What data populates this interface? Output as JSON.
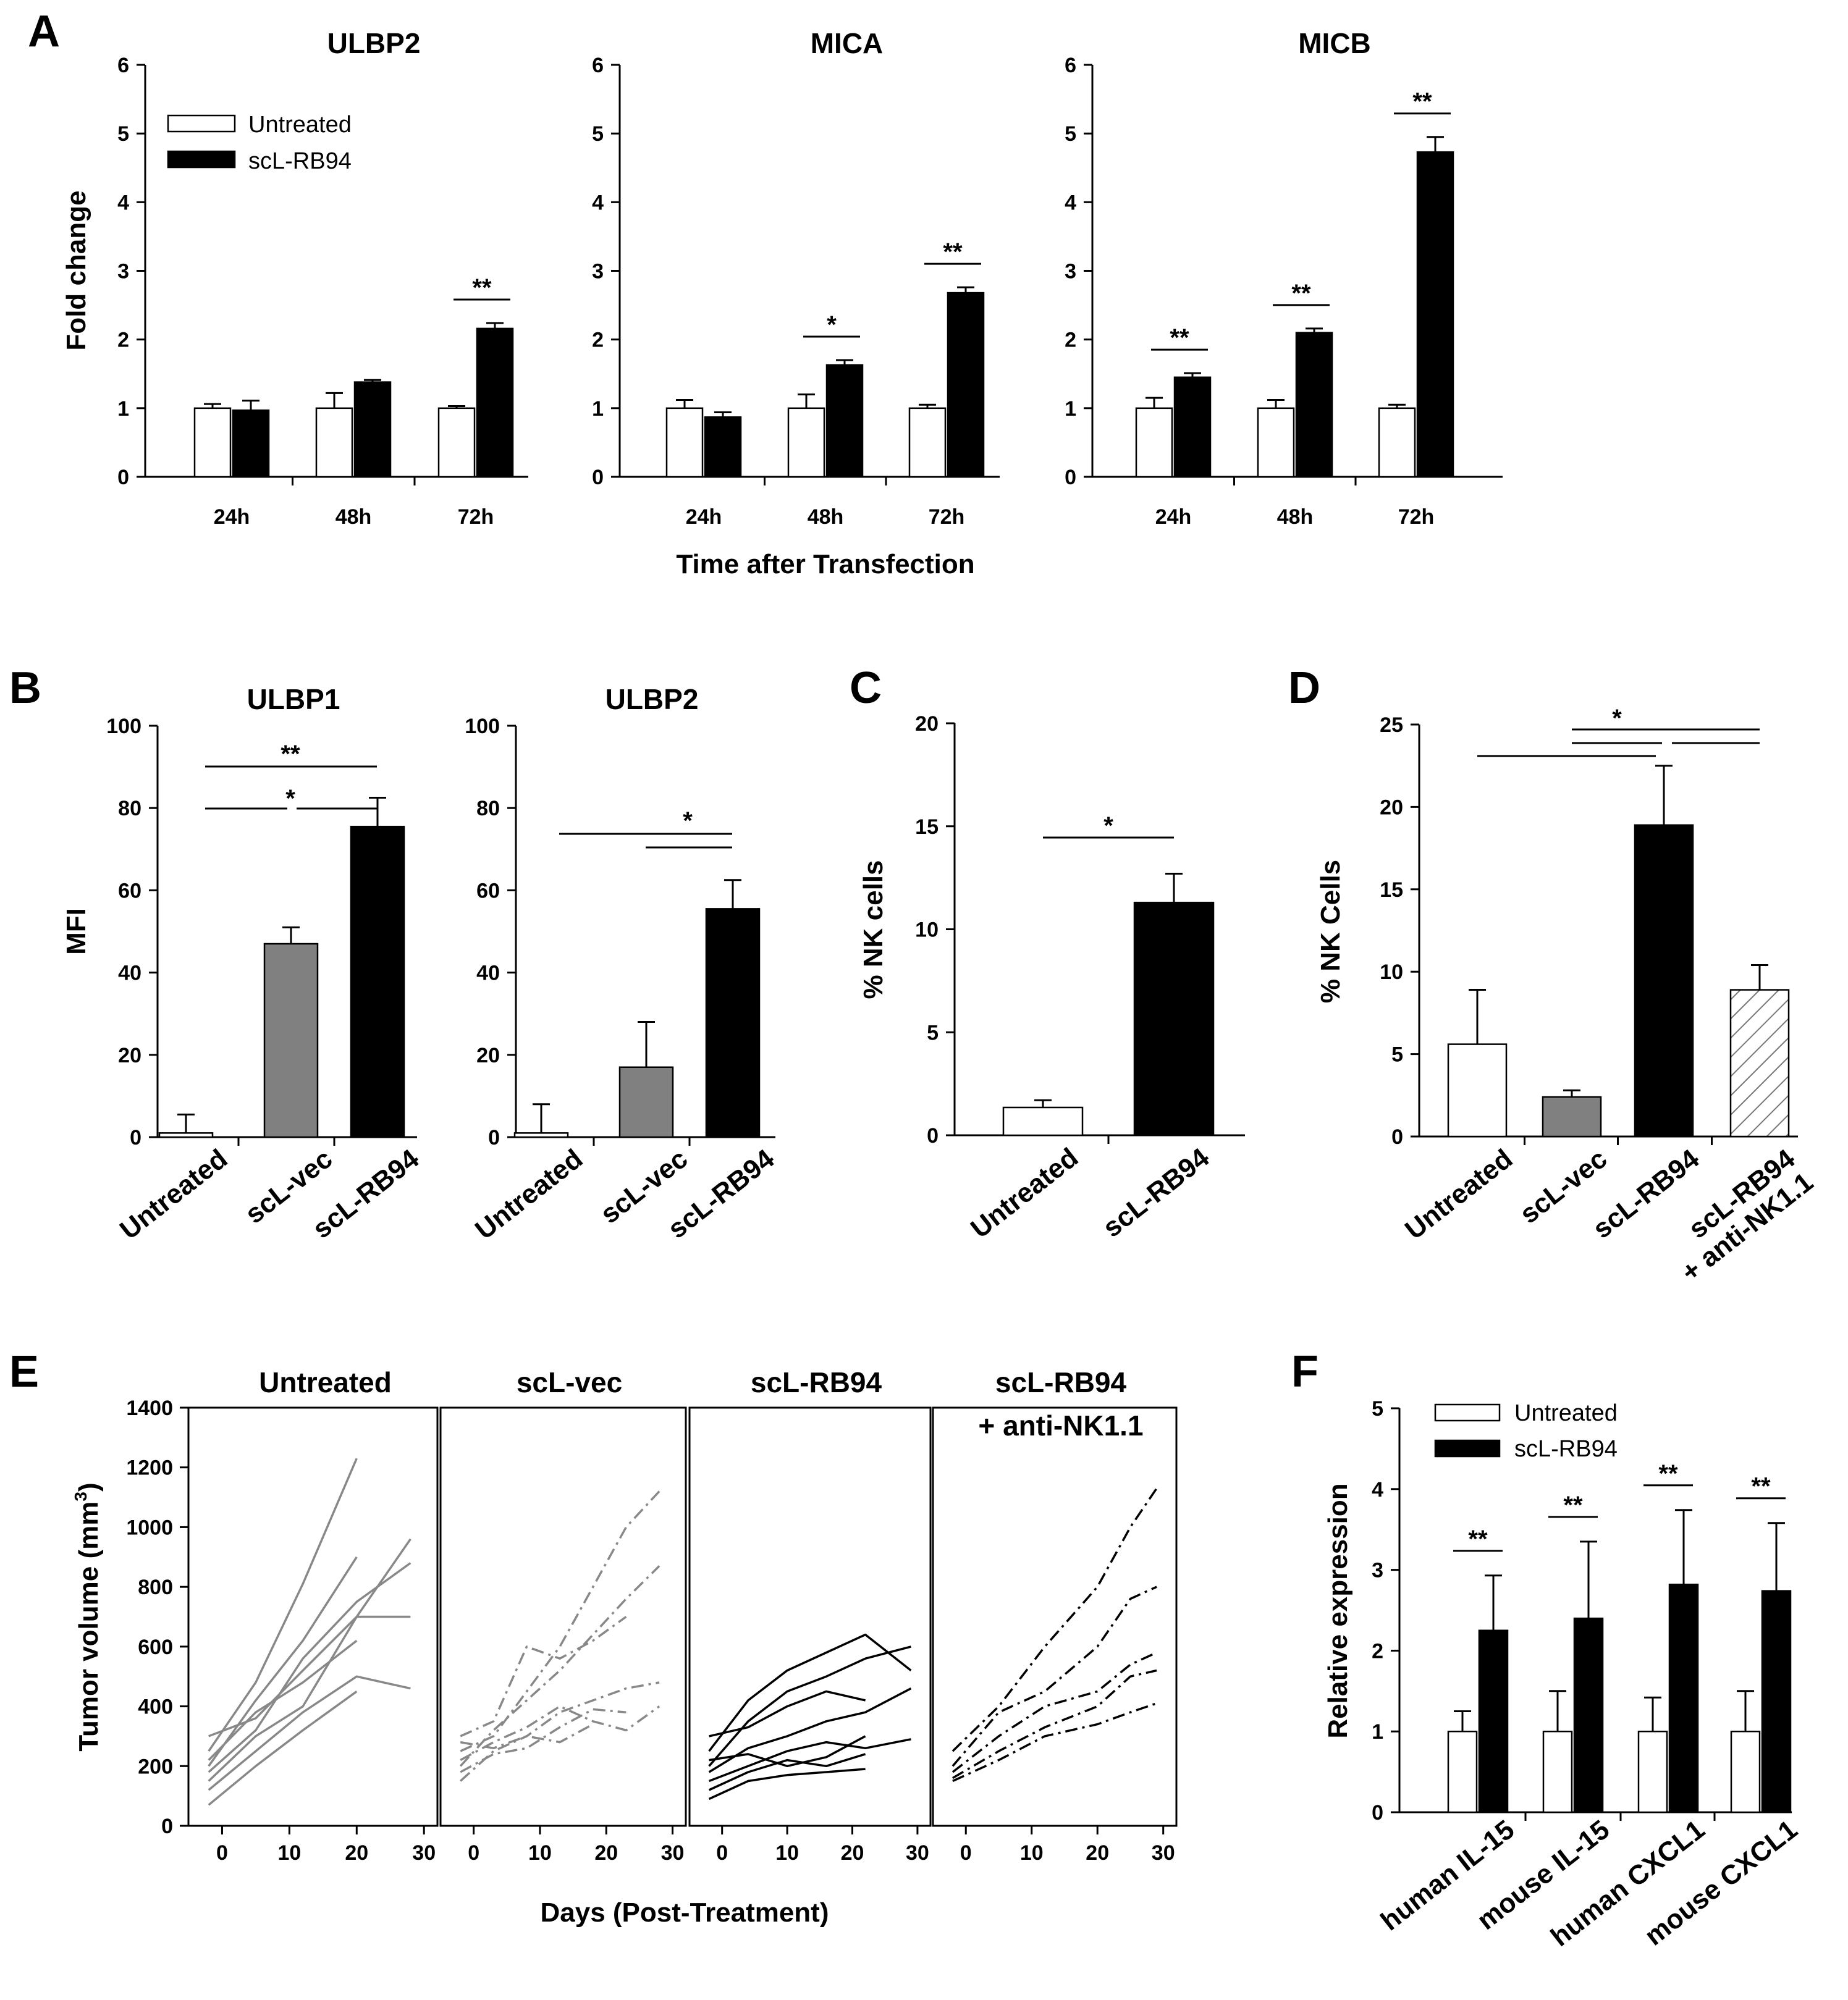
{
  "chart_data": [
    {
      "id": "A1",
      "panel_label": "A",
      "type": "bar",
      "title": "ULBP2",
      "categories": [
        "24h",
        "48h",
        "72h"
      ],
      "series": [
        {
          "name": "Untreated",
          "values": [
            1.0,
            1.0,
            1.0
          ],
          "errors": [
            0.06,
            0.22,
            0.03
          ]
        },
        {
          "name": "scL-RB94",
          "values": [
            0.97,
            1.38,
            2.16
          ],
          "errors": [
            0.14,
            0.03,
            0.08
          ]
        }
      ],
      "ylabel": "Fold change",
      "ylim": [
        0,
        6
      ],
      "yticks": [
        "0",
        "1",
        "2",
        "3",
        "4",
        "5",
        "6"
      ],
      "legend": [
        "Untreated",
        "scL-RB94"
      ],
      "significance": [
        {
          "label": "**",
          "category": "72h"
        }
      ]
    },
    {
      "id": "A2",
      "type": "bar",
      "title": "MICA",
      "categories": [
        "24h",
        "48h",
        "72h"
      ],
      "series": [
        {
          "name": "Untreated",
          "values": [
            1.0,
            1.0,
            1.0
          ],
          "errors": [
            0.12,
            0.2,
            0.05
          ]
        },
        {
          "name": "scL-RB94",
          "values": [
            0.87,
            1.63,
            2.68
          ],
          "errors": [
            0.07,
            0.07,
            0.08
          ]
        }
      ],
      "ylim": [
        0,
        6
      ],
      "yticks": [
        "0",
        "1",
        "2",
        "3",
        "4",
        "5",
        "6"
      ],
      "xlabel": "Time after Transfection",
      "significance": [
        {
          "label": "*",
          "category": "48h"
        },
        {
          "label": "**",
          "category": "72h"
        }
      ]
    },
    {
      "id": "A3",
      "type": "bar",
      "title": "MICB",
      "categories": [
        "24h",
        "48h",
        "72h"
      ],
      "series": [
        {
          "name": "Untreated",
          "values": [
            1.0,
            1.0,
            1.0
          ],
          "errors": [
            0.15,
            0.12,
            0.05
          ]
        },
        {
          "name": "scL-RB94",
          "values": [
            1.45,
            2.1,
            4.73
          ],
          "errors": [
            0.06,
            0.06,
            0.22
          ]
        }
      ],
      "ylim": [
        0,
        6
      ],
      "yticks": [
        "0",
        "1",
        "2",
        "3",
        "4",
        "5",
        "6"
      ],
      "significance": [
        {
          "label": "**",
          "category": "24h"
        },
        {
          "label": "**",
          "category": "48h"
        },
        {
          "label": "**",
          "category": "72h"
        }
      ]
    },
    {
      "id": "B1",
      "panel_label": "B",
      "type": "bar",
      "title": "ULBP1",
      "categories": [
        "Untreated",
        "scL-vec",
        "scL-RB94"
      ],
      "values": [
        1,
        47,
        75.5
      ],
      "errors": [
        4.5,
        4,
        7
      ],
      "colors": [
        "#ffffff",
        "#808080",
        "#000000"
      ],
      "ylabel": "MFI",
      "ylim": [
        0,
        100
      ],
      "yticks": [
        "0",
        "20",
        "40",
        "60",
        "80",
        "100"
      ],
      "significance": [
        {
          "label": "**",
          "from": "Untreated",
          "to": "scL-RB94"
        },
        {
          "label": "*",
          "from": "Untreated",
          "to": "scL-RB94"
        }
      ]
    },
    {
      "id": "B2",
      "type": "bar",
      "title": "ULBP2",
      "categories": [
        "Untreated",
        "scL-vec",
        "scL-RB94"
      ],
      "values": [
        1,
        17,
        55.5
      ],
      "errors": [
        7,
        11,
        7
      ],
      "colors": [
        "#ffffff",
        "#808080",
        "#000000"
      ],
      "ylim": [
        0,
        100
      ],
      "yticks": [
        "0",
        "20",
        "40",
        "60",
        "80",
        "100"
      ],
      "significance": [
        {
          "label": "*",
          "from": "Untreated",
          "to": "scL-RB94"
        }
      ]
    },
    {
      "id": "C",
      "panel_label": "C",
      "type": "bar",
      "categories": [
        "Untreated",
        "scL-RB94"
      ],
      "values": [
        1.35,
        11.3
      ],
      "errors": [
        0.35,
        1.4
      ],
      "colors": [
        "#ffffff",
        "#000000"
      ],
      "ylabel": "% NK cells",
      "ylim": [
        0,
        20
      ],
      "yticks": [
        "0",
        "5",
        "10",
        "15",
        "20"
      ],
      "significance": [
        {
          "label": "*",
          "from": "Untreated",
          "to": "scL-RB94"
        }
      ]
    },
    {
      "id": "D",
      "panel_label": "D",
      "type": "bar",
      "categories": [
        "Untreated",
        "scL-vec",
        "scL-RB94",
        "scL-RB94 + anti-NK1.1"
      ],
      "category_lines": [
        [
          "Untreated"
        ],
        [
          "scL-vec"
        ],
        [
          "scL-RB94"
        ],
        [
          "scL-RB94",
          "+ anti-NK1.1"
        ]
      ],
      "values": [
        5.6,
        2.4,
        18.9,
        8.9
      ],
      "errors": [
        3.3,
        0.4,
        3.6,
        1.5
      ],
      "colors": [
        "#ffffff",
        "#808080",
        "#000000",
        "hatch"
      ],
      "ylabel": "% NK Cells",
      "ylim": [
        0,
        25
      ],
      "yticks": [
        "0",
        "5",
        "10",
        "15",
        "20",
        "25"
      ],
      "significance": [
        {
          "label": "*",
          "comparisons": [
            [
              "Untreated",
              "scL-RB94"
            ],
            [
              "scL-vec",
              "scL-RB94"
            ],
            [
              "scL-RB94",
              "scL-RB94 + anti-NK1.1"
            ]
          ]
        }
      ]
    },
    {
      "id": "E",
      "panel_label": "E",
      "type": "line",
      "ylabel": "Tumor volume (mm",
      "ylabel_sup": "3",
      "ylabel_tail": ")",
      "xlabel": "Days (Post-Treatment)",
      "ylim": [
        0,
        1400
      ],
      "yticks": [
        "0",
        "200",
        "400",
        "600",
        "800",
        "1000",
        "1200",
        "1400"
      ],
      "xlim": [
        -5,
        32
      ],
      "xticks": [
        "0",
        "10",
        "20",
        "30"
      ],
      "subplots": [
        {
          "title": [
            "Untreated"
          ],
          "color": "#888888",
          "style": "solid",
          "series": [
            {
              "x": [
                -2,
                5,
                12,
                20
              ],
              "y": [
                250,
                480,
                810,
                1230
              ]
            },
            {
              "x": [
                -2,
                5,
                12,
                20
              ],
              "y": [
                200,
                420,
                620,
                900
              ]
            },
            {
              "x": [
                -2,
                5,
                12,
                20,
                28
              ],
              "y": [
                300,
                360,
                520,
                700,
                960
              ]
            },
            {
              "x": [
                -2,
                5,
                12,
                20,
                28
              ],
              "y": [
                180,
                320,
                560,
                750,
                880
              ]
            },
            {
              "x": [
                -2,
                5,
                12,
                20,
                28
              ],
              "y": [
                150,
                300,
                400,
                700,
                700
              ]
            },
            {
              "x": [
                -2,
                5,
                12,
                20
              ],
              "y": [
                220,
                380,
                480,
                620
              ]
            },
            {
              "x": [
                -2,
                5,
                12,
                20,
                28
              ],
              "y": [
                120,
                250,
                380,
                500,
                460
              ]
            },
            {
              "x": [
                -2,
                5,
                12,
                20
              ],
              "y": [
                70,
                200,
                320,
                450
              ]
            }
          ]
        },
        {
          "title": [
            "scL-vec"
          ],
          "color": "#888888",
          "style": "dashdot",
          "series": [
            {
              "x": [
                -2,
                3,
                8,
                13,
                18,
                23,
                28
              ],
              "y": [
                250,
                300,
                450,
                600,
                800,
                1000,
                1120
              ]
            },
            {
              "x": [
                -2,
                3,
                8,
                13,
                18,
                23,
                28
              ],
              "y": [
                200,
                320,
                420,
                520,
                640,
                760,
                870
              ]
            },
            {
              "x": [
                -2,
                3,
                8,
                13,
                18,
                23
              ],
              "y": [
                300,
                350,
                600,
                560,
                620,
                700
              ]
            },
            {
              "x": [
                -2,
                3,
                8,
                13,
                18,
                23,
                28
              ],
              "y": [
                150,
                250,
                300,
                380,
                420,
                460,
                480
              ]
            },
            {
              "x": [
                -2,
                3,
                8,
                13,
                18,
                23,
                28
              ],
              "y": [
                220,
                280,
                330,
                400,
                350,
                320,
                400
              ]
            },
            {
              "x": [
                -2,
                3,
                8,
                13,
                18,
                23
              ],
              "y": [
                180,
                240,
                260,
                330,
                390,
                380
              ]
            },
            {
              "x": [
                -2,
                3,
                8,
                13,
                18
              ],
              "y": [
                280,
                260,
                300,
                280,
                340
              ]
            }
          ]
        },
        {
          "title": [
            "scL-RB94"
          ],
          "color": "#000000",
          "style": "solid",
          "series": [
            {
              "x": [
                -2,
                4,
                10,
                16,
                22,
                29
              ],
              "y": [
                250,
                420,
                520,
                580,
                640,
                520
              ]
            },
            {
              "x": [
                -2,
                4,
                10,
                16,
                22,
                29
              ],
              "y": [
                200,
                350,
                450,
                500,
                560,
                600
              ]
            },
            {
              "x": [
                -2,
                4,
                10,
                16,
                22
              ],
              "y": [
                300,
                330,
                400,
                450,
                420
              ]
            },
            {
              "x": [
                -2,
                4,
                10,
                16,
                22,
                29
              ],
              "y": [
                180,
                260,
                300,
                350,
                380,
                460
              ]
            },
            {
              "x": [
                -2,
                4,
                10,
                16,
                22,
                29
              ],
              "y": [
                150,
                200,
                250,
                280,
                260,
                290
              ]
            },
            {
              "x": [
                -2,
                4,
                10,
                16,
                22
              ],
              "y": [
                220,
                240,
                200,
                230,
                300
              ]
            },
            {
              "x": [
                -2,
                4,
                10,
                16,
                22
              ],
              "y": [
                120,
                180,
                220,
                200,
                240
              ]
            },
            {
              "x": [
                -2,
                4,
                10,
                16,
                22
              ],
              "y": [
                90,
                150,
                170,
                180,
                190
              ]
            }
          ]
        },
        {
          "title": [
            "scL-RB94",
            "+ anti-NK1.1"
          ],
          "color": "#000000",
          "style": "dashdot",
          "series": [
            {
              "x": [
                -2,
                5,
                12,
                20,
                25,
                29
              ],
              "y": [
                250,
                400,
                600,
                800,
                1000,
                1130
              ]
            },
            {
              "x": [
                -2,
                5,
                12,
                20,
                25,
                29
              ],
              "y": [
                200,
                380,
                450,
                600,
                760,
                800
              ]
            },
            {
              "x": [
                -2,
                5,
                12,
                20,
                25,
                29
              ],
              "y": [
                180,
                300,
                400,
                450,
                540,
                580
              ]
            },
            {
              "x": [
                -2,
                5,
                12,
                20,
                25,
                29
              ],
              "y": [
                160,
                250,
                330,
                400,
                500,
                520
              ]
            },
            {
              "x": [
                -2,
                5,
                12,
                20,
                25,
                29
              ],
              "y": [
                150,
                220,
                300,
                340,
                380,
                410
              ]
            }
          ]
        }
      ]
    },
    {
      "id": "F",
      "panel_label": "F",
      "type": "bar",
      "categories": [
        "human IL-15",
        "mouse IL-15",
        "human CXCL1",
        "mouse CXCL1"
      ],
      "series": [
        {
          "name": "Untreated",
          "values": [
            1.0,
            1.0,
            1.0,
            1.0
          ],
          "errors": [
            0.25,
            0.5,
            0.42,
            0.5
          ]
        },
        {
          "name": "scL-RB94",
          "values": [
            2.25,
            2.4,
            2.82,
            2.74
          ],
          "errors": [
            0.68,
            0.95,
            0.92,
            0.84
          ]
        }
      ],
      "ylabel": "Relative expression",
      "ylim": [
        0,
        5
      ],
      "yticks": [
        "0",
        "1",
        "2",
        "3",
        "4",
        "5"
      ],
      "legend": [
        "Untreated",
        "scL-RB94"
      ],
      "significance": [
        {
          "label": "**",
          "category": "human IL-15"
        },
        {
          "label": "**",
          "category": "mouse IL-15"
        },
        {
          "label": "**",
          "category": "human CXCL1"
        },
        {
          "label": "**",
          "category": "mouse CXCL1"
        }
      ]
    }
  ]
}
